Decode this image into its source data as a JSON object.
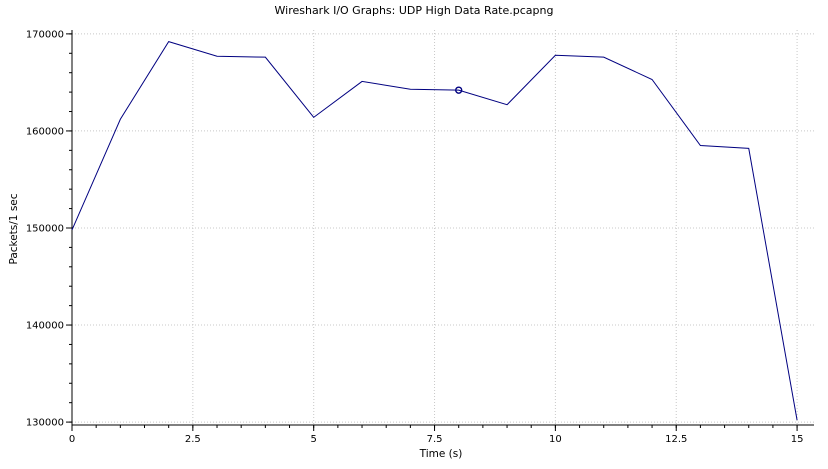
{
  "chart_data": {
    "type": "line",
    "title": "Wireshark I/O Graphs: UDP High Data Rate.pcapng",
    "xlabel": "Time (s)",
    "ylabel": "Packets/1 sec",
    "xlim": [
      0,
      15.35
    ],
    "ylim": [
      129700,
      170400
    ],
    "x_ticks": [
      0,
      2.5,
      5,
      7.5,
      10,
      12.5,
      15
    ],
    "x_tick_labels": [
      "0",
      "2.5",
      "5",
      "7.5",
      "10",
      "12.5",
      "15"
    ],
    "x_minor_step": 0.5,
    "y_ticks": [
      130000,
      140000,
      150000,
      160000,
      170000
    ],
    "y_tick_labels": [
      "130000",
      "140000",
      "150000",
      "160000",
      "170000"
    ],
    "y_minor_step": 2000,
    "grid": true,
    "legend": "none",
    "series": [
      {
        "color": "#000080",
        "x": [
          0,
          1,
          2,
          3,
          4,
          5,
          6,
          7,
          8,
          9,
          10,
          11,
          12,
          13,
          14,
          15
        ],
        "values": [
          149800,
          161200,
          169200,
          167700,
          167600,
          161400,
          165100,
          164300,
          164200,
          162700,
          167800,
          167600,
          165300,
          158500,
          158200,
          130200
        ]
      }
    ],
    "highlighted_point": {
      "x": 8,
      "y": 164200
    }
  }
}
